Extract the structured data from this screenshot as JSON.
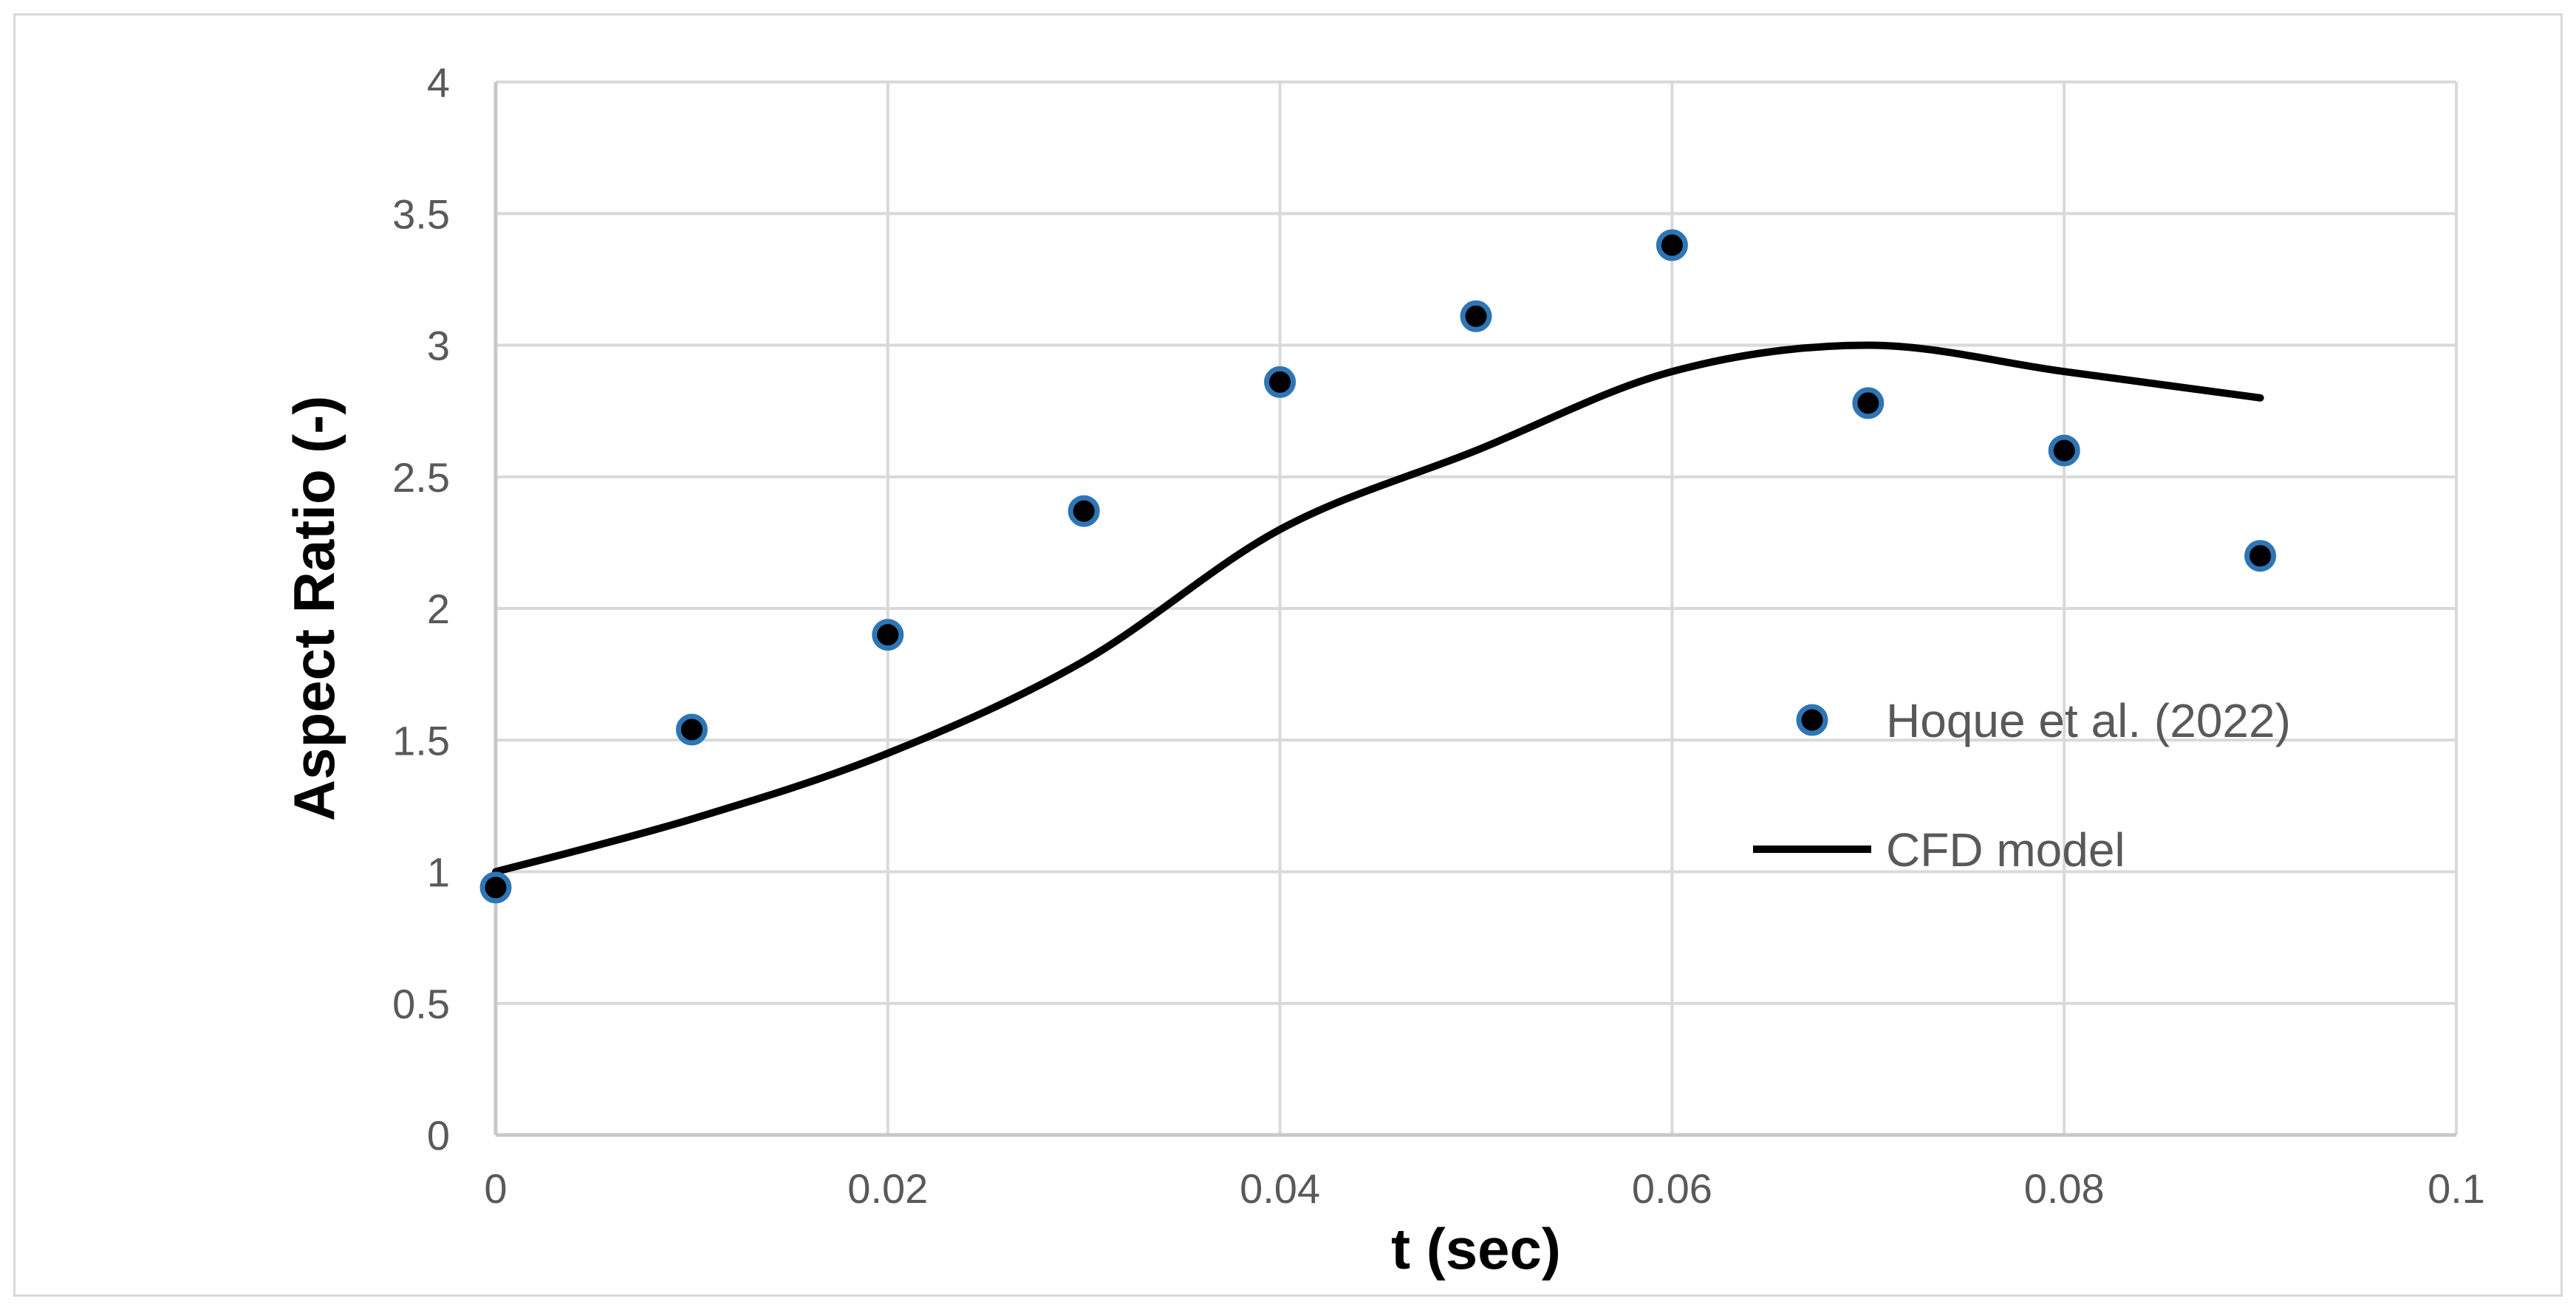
{
  "chart_data": {
    "type": "scatter",
    "xlabel": "t (sec)",
    "ylabel": "Aspect Ratio (-)",
    "xlim": [
      0,
      0.1
    ],
    "ylim": [
      0,
      4
    ],
    "x_ticks": [
      "0",
      "0.02",
      "0.04",
      "0.06",
      "0.08",
      "0.1"
    ],
    "y_ticks": [
      "0",
      "0.5",
      "1",
      "1.5",
      "2",
      "2.5",
      "3",
      "3.5",
      "4"
    ],
    "grid": true,
    "legend_position": "right",
    "series": [
      {
        "name": "Hoque et al. (2022)",
        "kind": "markers",
        "color": "#000000",
        "edge_color": "#2e75b6",
        "x": [
          0,
          0.01,
          0.02,
          0.03,
          0.04,
          0.05,
          0.06,
          0.07,
          0.08,
          0.09
        ],
        "y": [
          0.94,
          1.54,
          1.9,
          2.37,
          2.86,
          3.11,
          3.38,
          2.78,
          2.6,
          2.2
        ]
      },
      {
        "name": "CFD model",
        "kind": "line",
        "color": "#000000",
        "x": [
          0,
          0.01,
          0.02,
          0.03,
          0.04,
          0.05,
          0.06,
          0.07,
          0.08,
          0.09
        ],
        "y": [
          1.0,
          1.2,
          1.45,
          1.8,
          2.3,
          2.6,
          2.9,
          3.0,
          2.9,
          2.8
        ]
      }
    ]
  }
}
